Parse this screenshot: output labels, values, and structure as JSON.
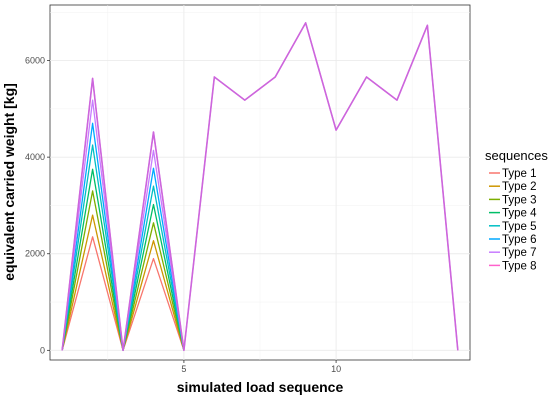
{
  "chart_data": {
    "type": "line",
    "title": "",
    "xlabel": "simulated load sequence",
    "ylabel": "equivalent carried weight [kg]",
    "xlim": [
      0.6,
      14.4
    ],
    "ylim": [
      -200,
      7150
    ],
    "x_ticks": [
      5,
      10
    ],
    "x_minor_ticks": [
      2.5,
      7.5,
      12.5
    ],
    "y_ticks": [
      0,
      2000,
      4000,
      6000
    ],
    "y_minor_ticks": [
      1000,
      3000,
      5000,
      7000
    ],
    "grid": true,
    "legend": {
      "title": "sequences",
      "position": "right"
    },
    "x": [
      1,
      2,
      3,
      4,
      5,
      6,
      7,
      8,
      9,
      10,
      11,
      12,
      13,
      14
    ],
    "series": [
      {
        "name": "Type 1",
        "color": "#F8766D",
        "values": [
          0,
          2350,
          0,
          1900,
          0,
          null,
          null,
          null,
          null,
          null,
          null,
          null,
          null,
          null
        ]
      },
      {
        "name": "Type 2",
        "color": "#CD9600",
        "values": [
          0,
          2800,
          0,
          2270,
          0,
          null,
          null,
          null,
          null,
          null,
          null,
          null,
          null,
          null
        ]
      },
      {
        "name": "Type 3",
        "color": "#7CAE00",
        "values": [
          0,
          3300,
          0,
          2640,
          0,
          null,
          null,
          null,
          null,
          null,
          null,
          null,
          null,
          null
        ]
      },
      {
        "name": "Type 4",
        "color": "#00BE67",
        "values": [
          0,
          3750,
          0,
          3020,
          0,
          null,
          null,
          null,
          null,
          null,
          null,
          null,
          null,
          null
        ]
      },
      {
        "name": "Type 5",
        "color": "#00BFC4",
        "values": [
          0,
          4250,
          0,
          3400,
          0,
          null,
          null,
          null,
          null,
          null,
          null,
          null,
          null,
          null
        ]
      },
      {
        "name": "Type 6",
        "color": "#00A9FF",
        "values": [
          0,
          4700,
          0,
          3770,
          0,
          null,
          null,
          null,
          null,
          null,
          null,
          null,
          null,
          null
        ]
      },
      {
        "name": "Type 7",
        "color": "#C77CFF",
        "values": [
          0,
          5180,
          0,
          4140,
          0,
          null,
          null,
          null,
          null,
          null,
          null,
          null,
          null,
          null
        ]
      },
      {
        "name": "Type 8",
        "color": "#FF61CC",
        "values": [
          0,
          5630,
          0,
          4520,
          0,
          5660,
          5180,
          5660,
          6780,
          4560,
          5660,
          5180,
          6730,
          0
        ]
      }
    ],
    "overlay_color": "#CC66DD"
  }
}
